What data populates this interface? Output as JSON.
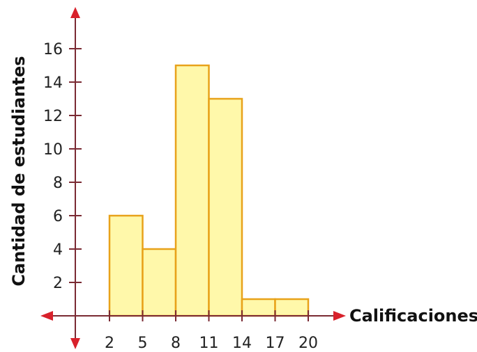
{
  "chart_data": {
    "type": "bar",
    "xlabel": "Calificaciones",
    "ylabel": "Cantidad de estudiantes",
    "bins": [
      {
        "from": 2,
        "to": 5,
        "value": 6
      },
      {
        "from": 5,
        "to": 8,
        "value": 4
      },
      {
        "from": 8,
        "to": 11,
        "value": 15
      },
      {
        "from": 11,
        "to": 14,
        "value": 13
      },
      {
        "from": 14,
        "to": 17,
        "value": 1
      },
      {
        "from": 17,
        "to": 20,
        "value": 1
      }
    ],
    "x_ticks": [
      "2",
      "5",
      "8",
      "11",
      "14",
      "17",
      "20"
    ],
    "y_ticks": [
      "2",
      "4",
      "6",
      "8",
      "10",
      "12",
      "14",
      "16"
    ],
    "ylim": [
      0,
      16
    ],
    "grid": false,
    "colors": {
      "bar_fill": "#FFF8AA",
      "bar_stroke": "#E8A21A",
      "axis": "#7A2A33",
      "arrow": "#D8212B"
    }
  }
}
